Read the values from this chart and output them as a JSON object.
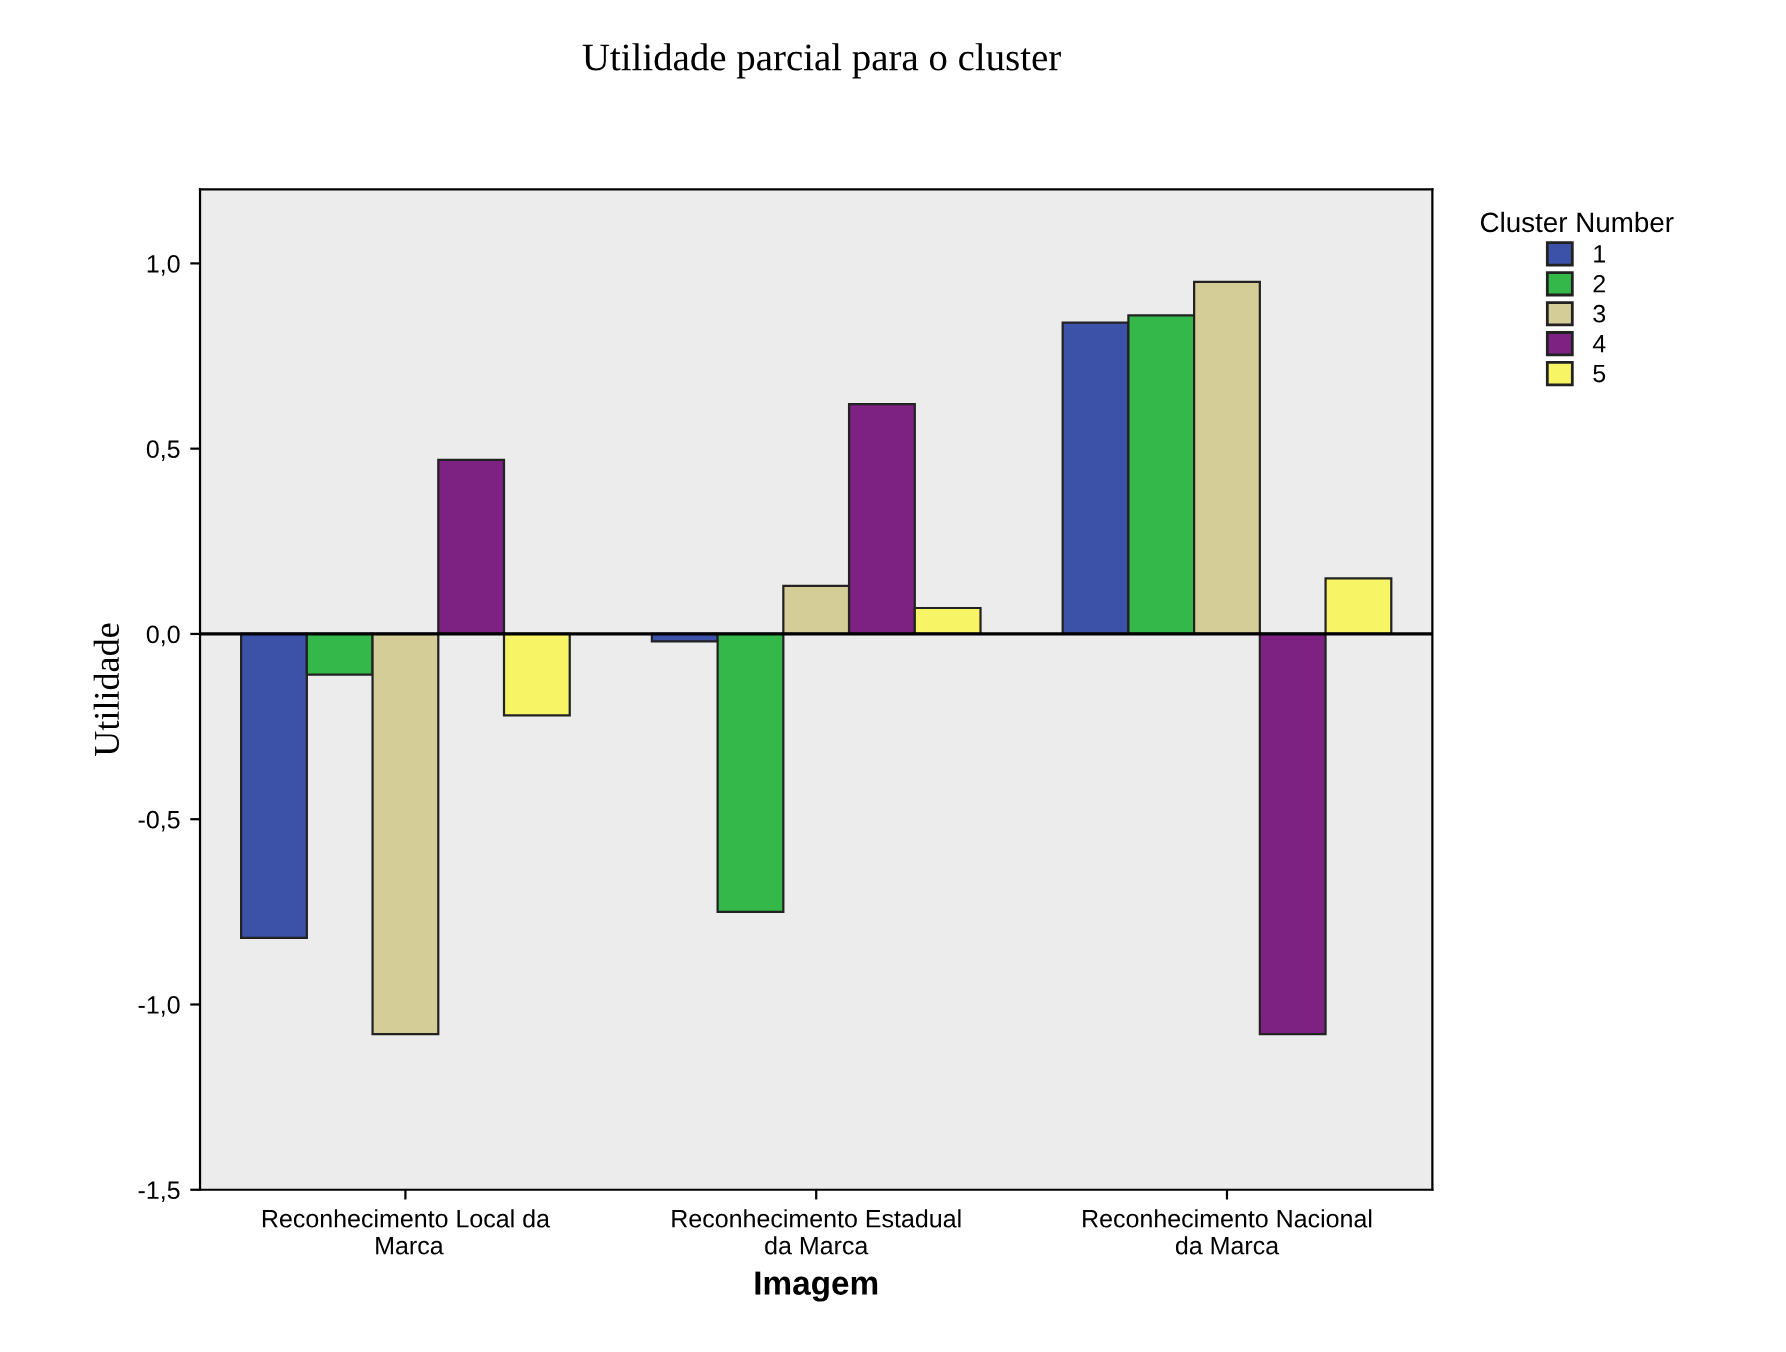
{
  "chart_data": {
    "type": "bar",
    "title": "Utilidade parcial para o cluster",
    "xlabel": "Imagem",
    "ylabel": "Utilidade",
    "legend_title": "Cluster Number",
    "categories": [
      "Reconhecimento Local da Marca",
      "Reconhecimento Estadual da Marca",
      "Reconhecimento Nacional da Marca"
    ],
    "series": [
      {
        "name": "1",
        "color": "#3c52a8",
        "values": [
          -0.82,
          -0.02,
          0.84
        ]
      },
      {
        "name": "2",
        "color": "#35b84a",
        "values": [
          -0.11,
          -0.75,
          0.86
        ]
      },
      {
        "name": "3",
        "color": "#d4cd98",
        "values": [
          -1.08,
          0.13,
          0.95
        ]
      },
      {
        "name": "4",
        "color": "#7d2182",
        "values": [
          0.47,
          0.62,
          -1.08
        ]
      },
      {
        "name": "5",
        "color": "#f7f465",
        "values": [
          -0.22,
          0.07,
          0.15
        ]
      }
    ],
    "ylim": [
      -1.5,
      1.2
    ],
    "yticks": [
      {
        "value": -1.5,
        "label": "-1,5"
      },
      {
        "value": -1.0,
        "label": "-1,0"
      },
      {
        "value": -0.5,
        "label": "-0,5"
      },
      {
        "value": 0.0,
        "label": "0,0"
      },
      {
        "value": 0.5,
        "label": "0,5"
      },
      {
        "value": 1.0,
        "label": "1,0"
      }
    ],
    "ref_lines": [
      {
        "axis": "y",
        "value": 0,
        "color": "#000000"
      }
    ],
    "grid": false,
    "legend": "right"
  }
}
